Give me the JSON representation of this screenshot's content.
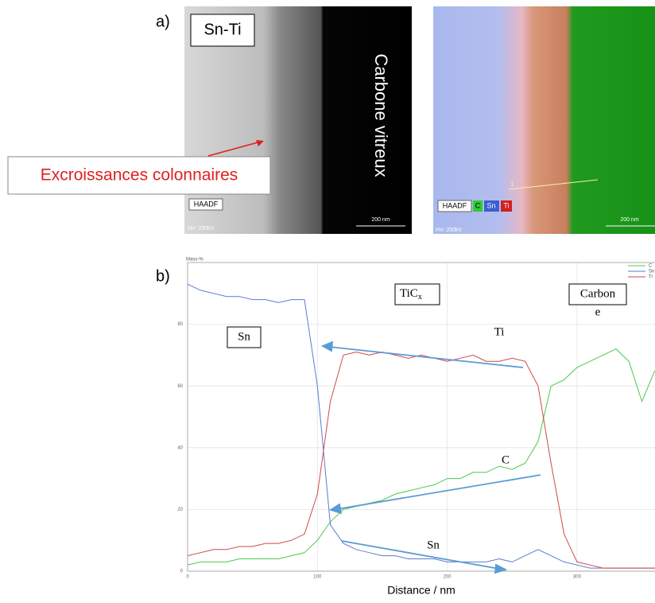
{
  "panel_a": {
    "label": "a)",
    "left_image": {
      "sample": "Sn-Ti",
      "region": "Carbone vitreux",
      "detector": "HAADF",
      "voltage": "HV: 200kV",
      "scale": "200 nm"
    },
    "callout": "Excroissances colonnaires",
    "right_image": {
      "detector": "HAADF",
      "elements": [
        "C",
        "Sn",
        "Ti"
      ],
      "profile_marker": "1",
      "voltage": "HV: 200kV",
      "scale": "200 nm"
    }
  },
  "panel_b": {
    "label": "b)"
  },
  "chart_data": {
    "type": "line",
    "ylabel": "Mass-%",
    "xlabel": "Distance / nm",
    "annotations": {
      "sn_region": "Sn",
      "ticx_region": "TiC",
      "ticx_subscript": "x",
      "carbon_region": "Carbon",
      "carbon_region_tail": "e",
      "ti_line": "Ti",
      "c_line": "C",
      "sn_line": "Sn"
    },
    "x": [
      0,
      10,
      20,
      30,
      40,
      50,
      60,
      70,
      80,
      90,
      100,
      110,
      120,
      130,
      140,
      150,
      160,
      170,
      180,
      190,
      200,
      210,
      220,
      230,
      240,
      250,
      260,
      270,
      280,
      290,
      300,
      310,
      320,
      330,
      340,
      350,
      360
    ],
    "series": [
      {
        "name": "C",
        "color": "#4cc94c",
        "values": [
          2,
          3,
          3,
          3,
          4,
          4,
          4,
          4,
          5,
          6,
          10,
          16,
          20,
          21,
          22,
          23,
          25,
          26,
          27,
          28,
          30,
          30,
          32,
          32,
          34,
          33,
          35,
          42,
          60,
          62,
          66,
          68,
          70,
          72,
          68,
          55,
          65
        ]
      },
      {
        "name": "Sn",
        "color": "#5a7bd0",
        "values": [
          93,
          91,
          90,
          89,
          89,
          88,
          88,
          87,
          88,
          88,
          60,
          15,
          9,
          7,
          6,
          5,
          5,
          4,
          4,
          4,
          3,
          3,
          3,
          3,
          4,
          3,
          5,
          7,
          5,
          3,
          2,
          1,
          1,
          1,
          1,
          1,
          1
        ]
      },
      {
        "name": "Ti",
        "color": "#d04848",
        "values": [
          5,
          6,
          7,
          7,
          8,
          8,
          9,
          9,
          10,
          12,
          25,
          55,
          70,
          71,
          70,
          71,
          70,
          69,
          70,
          69,
          68,
          69,
          70,
          68,
          68,
          69,
          68,
          60,
          35,
          12,
          3,
          2,
          1,
          1,
          1,
          1,
          1
        ]
      }
    ],
    "xlim": [
      0,
      360
    ],
    "ylim": [
      0,
      100
    ],
    "xticks": [
      0,
      100,
      200,
      300
    ],
    "yticks": [
      0,
      20,
      40,
      60,
      80
    ],
    "grid": true
  }
}
